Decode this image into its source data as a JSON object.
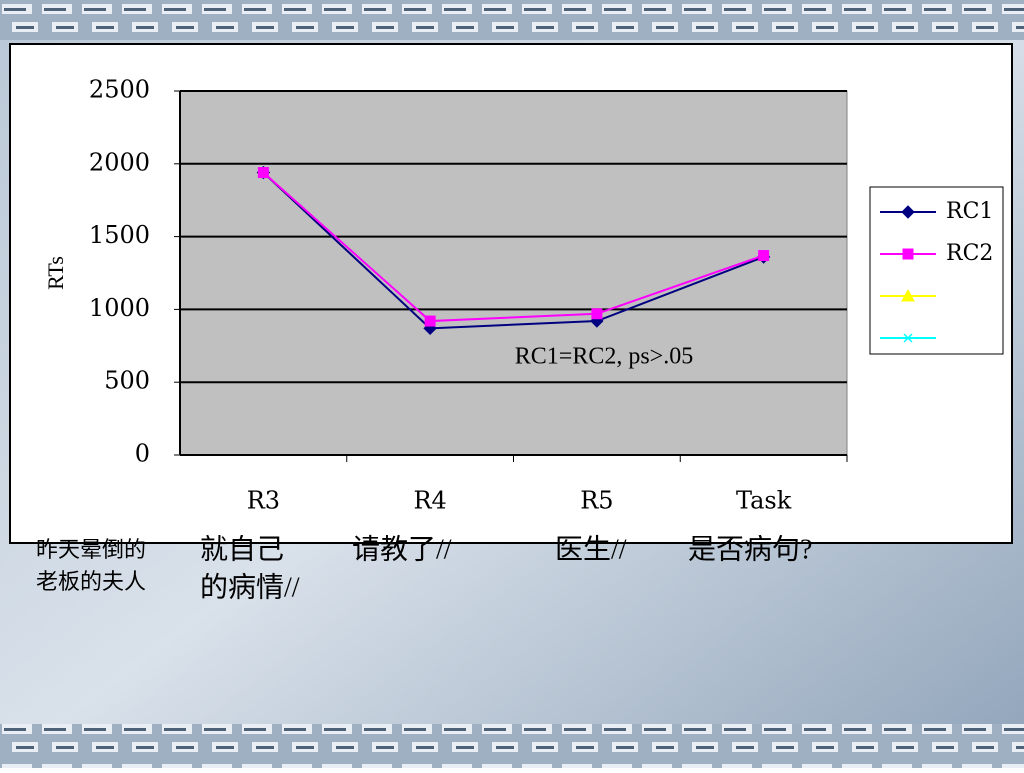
{
  "chart_data": {
    "type": "line",
    "y_label": "RTs",
    "categories": [
      "R3",
      "R4",
      "R5",
      "Task"
    ],
    "series": [
      {
        "name": "RC1",
        "color": "#000080",
        "marker": "diamond",
        "values": [
          1940,
          870,
          920,
          1360
        ]
      },
      {
        "name": "RC2",
        "color": "#ff00ff",
        "marker": "square",
        "values": [
          1940,
          920,
          970,
          1370
        ]
      },
      {
        "name": null,
        "color": "#ffff00",
        "marker": "triangle",
        "values": [
          null,
          null,
          null,
          null
        ]
      },
      {
        "name": null,
        "color": "#00ffff",
        "marker": "x",
        "values": [
          null,
          null,
          null,
          null
        ]
      }
    ],
    "ylim": [
      0,
      2500
    ],
    "yticks": [
      0,
      500,
      1000,
      1500,
      2000,
      2500
    ],
    "grid": true,
    "annotation": "RC1=RC2, ps>.05",
    "legend": "right",
    "segments": [
      [
        "昨天晕倒的",
        "老板的夫人"
      ],
      [
        "就自己",
        "的病情//"
      ],
      [
        "请教了//"
      ],
      [
        "医生//"
      ],
      [
        "是否病句?"
      ]
    ]
  }
}
